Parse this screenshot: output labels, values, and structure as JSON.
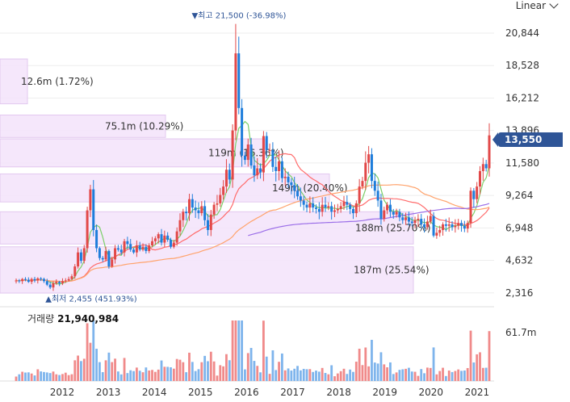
{
  "controls": {
    "scale_label": "Linear"
  },
  "current_price": {
    "label": "13,550",
    "value": 13550
  },
  "volume_header": {
    "label": "거래량",
    "value": "21,940,984"
  },
  "colors": {
    "up": "#e24848",
    "down": "#1e7ddb",
    "ma5": "#7ccf6a",
    "ma20": "#ff6b6b",
    "ma60": "#ffa36c",
    "ma120": "#9b6ee8",
    "profile": "#f3e3fa",
    "profile_border": "#e2c8ef",
    "tag": "#2f5597"
  },
  "chart_data": {
    "type": "candlestick",
    "y_ticks": [
      "20,844",
      "18,528",
      "16,212",
      "13,896",
      "11,580",
      "9,264",
      "6,948",
      "4,632",
      "2,316"
    ],
    "y_tick_values": [
      20844,
      18528,
      16212,
      13896,
      11580,
      9264,
      6948,
      4632,
      2316
    ],
    "ylim": [
      1900,
      22400
    ],
    "x_ticks": [
      "2012",
      "2013",
      "2014",
      "2015",
      "2016",
      "2017",
      "2018",
      "2019",
      "2020",
      "2021"
    ],
    "high_annotation": {
      "text": "▼최고 21,500 (-36.98%)",
      "value": 21500
    },
    "low_annotation": {
      "text": "▲최저 2,455 (451.93%)",
      "value": 2455
    },
    "volume_profile": [
      {
        "label": "12.6m (1.72%)",
        "price_top": 19000,
        "price_bottom": 15800
      },
      {
        "label": "75.1m (10.29%)",
        "price_top": 15000,
        "price_bottom": 13400
      },
      {
        "label": "119m (16.36%)",
        "price_top": 13300,
        "price_bottom": 11300
      },
      {
        "label": "149m (20.40%)",
        "price_top": 10800,
        "price_bottom": 8800
      },
      {
        "label": "188m (25.70%)",
        "price_top": 8100,
        "price_bottom": 5800
      },
      {
        "label": "187m (25.54%)",
        "price_top": 5600,
        "price_bottom": 2300
      }
    ],
    "volume_axis": {
      "tick_label": "61.7m",
      "tick_value": 61.7
    },
    "closes": [
      3200,
      3150,
      3300,
      3250,
      3100,
      3300,
      3200,
      3350,
      3300,
      3150,
      2900,
      2700,
      3000,
      3100,
      3000,
      3150,
      3200,
      3300,
      3500,
      4200,
      5200,
      4600,
      5500,
      8200,
      9700,
      6800,
      5500,
      4800,
      4700,
      5300,
      4200,
      4700,
      5500,
      5400,
      5200,
      6000,
      5800,
      5400,
      5200,
      5700,
      5400,
      5600,
      5300,
      5700,
      6000,
      6200,
      6500,
      5900,
      6400,
      6100,
      5600,
      5900,
      6700,
      7500,
      8100,
      8000,
      9000,
      8400,
      8200,
      8000,
      8500,
      7500,
      6800,
      7900,
      8600,
      8700,
      9300,
      9900,
      11100,
      10400,
      13900,
      19400,
      15500,
      12100,
      11800,
      12900,
      11400,
      10700,
      11200,
      10900,
      13500,
      12500,
      12500,
      11300,
      11000,
      11700,
      10500,
      10600,
      10200,
      10000,
      9600,
      9200,
      8900,
      8600,
      8400,
      8700,
      8400,
      8300,
      8100,
      8600,
      8400,
      8500,
      8100,
      8200,
      8300,
      8500,
      8800,
      8600,
      8300,
      8000,
      8700,
      9900,
      10300,
      11600,
      12200,
      10300,
      9600,
      8900,
      7600,
      8200,
      8600,
      8100,
      7900,
      8100,
      7700,
      7500,
      7700,
      7400,
      7300,
      7500,
      7600,
      7200,
      7000,
      7400,
      7800,
      6400,
      6600,
      6800,
      7200,
      7100,
      7200,
      7000,
      7100,
      7300,
      7100,
      6900,
      7300,
      9600,
      9000,
      9900,
      11000,
      11500,
      11200,
      13550
    ]
  }
}
